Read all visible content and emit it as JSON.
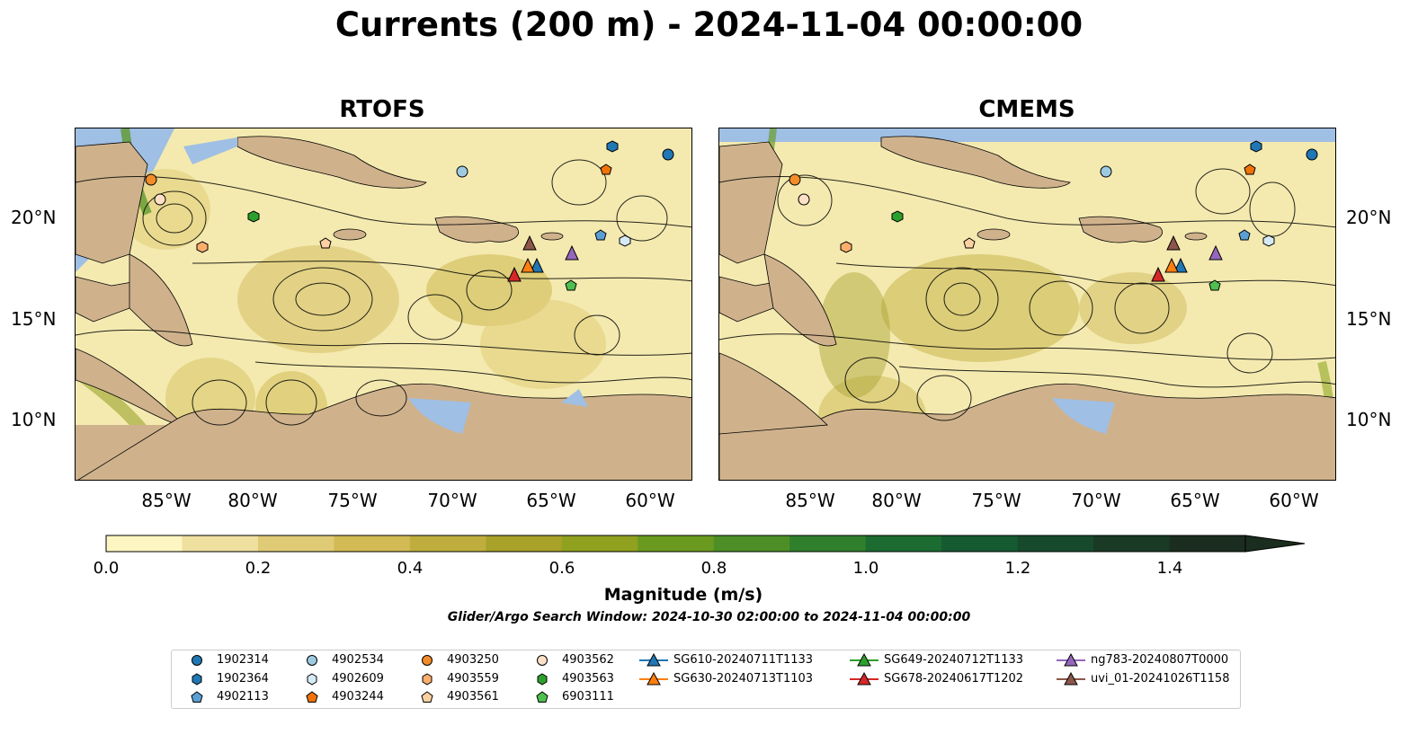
{
  "title": "Currents (200 m) - 2024-11-04 00:00:00",
  "panels": [
    {
      "title": "RTOFS"
    },
    {
      "title": "CMEMS"
    }
  ],
  "lon_ticks": [
    "85°W",
    "80°W",
    "75°W",
    "70°W",
    "65°W",
    "60°W"
  ],
  "lat_ticks": [
    "20°N",
    "15°N",
    "10°N"
  ],
  "colorbar": {
    "label": "Magnitude (m/s)",
    "ticks": [
      "0.0",
      "0.2",
      "0.4",
      "0.6",
      "0.8",
      "1.0",
      "1.2",
      "1.4"
    ],
    "colors": [
      "#fdf6c2",
      "#efe0a0",
      "#dfcb75",
      "#d2bb55",
      "#bfae3e",
      "#a8a12a",
      "#8fa11f",
      "#6a9a20",
      "#4d8f26",
      "#2f7f2d",
      "#1c6b31",
      "#155a30",
      "#174a2c",
      "#1a3a25",
      "#1b2d1e"
    ]
  },
  "subtitle": "Glider/Argo Search Window: 2024-10-30 02:00:00 to 2024-11-04 00:00:00",
  "legend": [
    {
      "label": "1902314",
      "marker": "circle",
      "color": "#1f77b4"
    },
    {
      "label": "1902364",
      "marker": "hexagon",
      "color": "#1f77b4"
    },
    {
      "label": "4902113",
      "marker": "pentagon",
      "color": "#5a9fd4"
    },
    {
      "label": "4902534",
      "marker": "circle",
      "color": "#9ecae1"
    },
    {
      "label": "4902609",
      "marker": "hexagon",
      "color": "#d6eaf5"
    },
    {
      "label": "4903244",
      "marker": "pentagon",
      "color": "#f0720a"
    },
    {
      "label": "4903250",
      "marker": "circle",
      "color": "#f28c28"
    },
    {
      "label": "4903559",
      "marker": "hexagon",
      "color": "#fdae6b"
    },
    {
      "label": "4903561",
      "marker": "pentagon",
      "color": "#fdd0a2"
    },
    {
      "label": "4903562",
      "marker": "circle",
      "color": "#fde0c5"
    },
    {
      "label": "4903563",
      "marker": "hexagon",
      "color": "#2ca02c"
    },
    {
      "label": "6903111",
      "marker": "pentagon",
      "color": "#4fbf4f"
    },
    {
      "label": "SG610-20240711T1133",
      "marker": "triangle",
      "color": "#1f77b4"
    },
    {
      "label": "SG630-20240713T1103",
      "marker": "triangle",
      "color": "#ff7f0e"
    },
    {
      "label": "SG649-20240712T1133",
      "marker": "triangle",
      "color": "#2ca02c"
    },
    {
      "label": "SG678-20240617T1202",
      "marker": "triangle",
      "color": "#d62728"
    },
    {
      "label": "ng783-20240807T0000",
      "marker": "triangle",
      "color": "#9467bd"
    },
    {
      "label": "uvi_01-20241026T1158",
      "marker": "triangle",
      "color": "#8c564b"
    }
  ]
}
